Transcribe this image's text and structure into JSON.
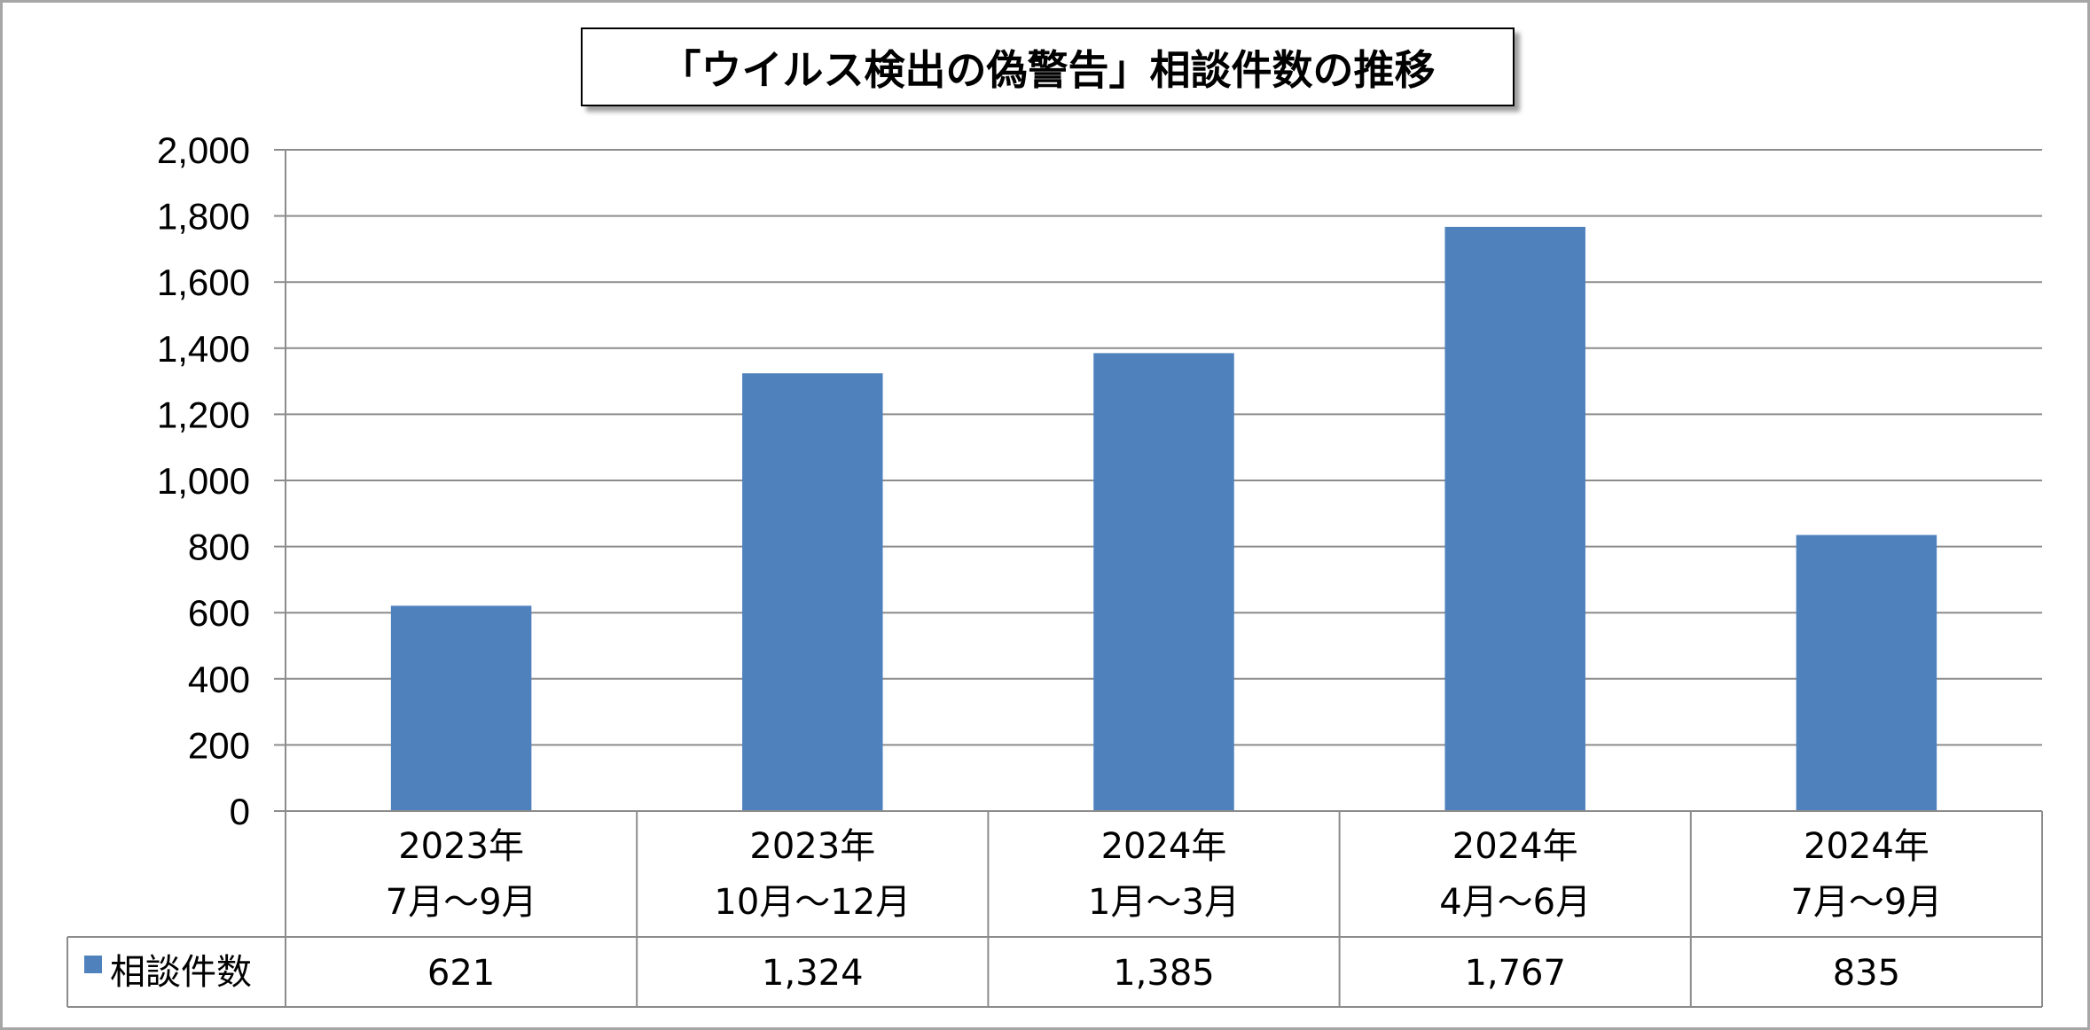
{
  "chart_data": {
    "type": "bar",
    "title": "「ウイルス検出の偽警告」相談件数の推移",
    "categories": [
      [
        "2023年",
        "7月～9月"
      ],
      [
        "2023年",
        "10月～12月"
      ],
      [
        "2024年",
        "1月～3月"
      ],
      [
        "2024年",
        "4月～6月"
      ],
      [
        "2024年",
        "7月～9月"
      ]
    ],
    "series": [
      {
        "name": "相談件数",
        "values": [
          621,
          1324,
          1385,
          1767,
          835
        ],
        "value_labels": [
          "621",
          "1,324",
          "1,385",
          "1,767",
          "835"
        ],
        "color": "#4f81bd"
      }
    ],
    "ylim": [
      0,
      2000
    ],
    "yticks": [
      "0",
      "200",
      "400",
      "600",
      "800",
      "1,000",
      "1,200",
      "1,400",
      "1,600",
      "1,800",
      "2,000"
    ],
    "grid": true,
    "legend": "data-table",
    "colors": {
      "bar": "#4f81bd",
      "grid": "#8c8c8c",
      "table_border": "#8c8c8c",
      "frame": "#a6a6a6"
    }
  }
}
